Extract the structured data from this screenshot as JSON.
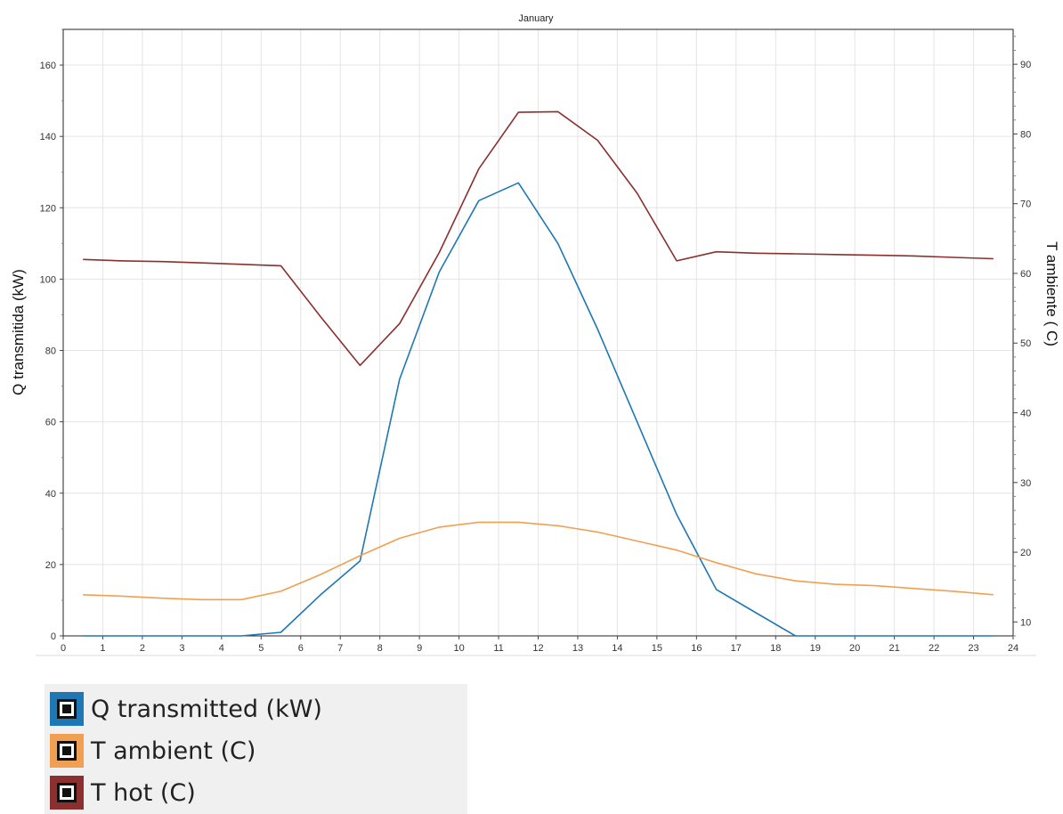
{
  "chart_data": {
    "type": "line",
    "title": "January",
    "xlabel": "",
    "ylabel": "Q transmitida (kW)",
    "y2label": "T ambiente ( C)",
    "xlim": [
      0,
      24
    ],
    "ylim": [
      0,
      170
    ],
    "y2lim": [
      8,
      95
    ],
    "x_ticks": [
      0,
      1,
      2,
      3,
      4,
      5,
      6,
      7,
      8,
      9,
      10,
      11,
      12,
      13,
      14,
      15,
      16,
      17,
      18,
      19,
      20,
      21,
      22,
      23,
      24
    ],
    "y_ticks": [
      0,
      20,
      40,
      60,
      80,
      100,
      120,
      140,
      160
    ],
    "y2_ticks": [
      10,
      20,
      30,
      40,
      50,
      60,
      70,
      80,
      90
    ],
    "grid": true,
    "x": [
      0.5,
      1.5,
      2.5,
      3.5,
      4.5,
      5.5,
      6.5,
      7.5,
      8.5,
      9.5,
      10.5,
      11.5,
      12.5,
      13.5,
      14.5,
      15.5,
      16.5,
      17.5,
      18.5,
      19.5,
      20.5,
      21.5,
      22.5,
      23.5
    ],
    "series": [
      {
        "name": "Q transmitted (kW)",
        "axis": "left",
        "color": "#1f77b4",
        "values": [
          0,
          0,
          0,
          0,
          0,
          1,
          11.5,
          21,
          72,
          102,
          122,
          127,
          110,
          86,
          60,
          34,
          13,
          6.5,
          0,
          0,
          0,
          0,
          0,
          0
        ]
      },
      {
        "name": "T ambient (C)",
        "axis": "right",
        "color": "#f0a050",
        "values": [
          13.9,
          13.7,
          13.4,
          13.2,
          13.2,
          14.4,
          16.8,
          19.5,
          22,
          23.6,
          24.3,
          24.3,
          23.8,
          22.9,
          21.6,
          20.3,
          18.5,
          16.9,
          15.9,
          15.4,
          15.2,
          14.8,
          14.4,
          13.9
        ]
      },
      {
        "name": "T hot (C)",
        "axis": "right",
        "color": "#8b2f2f",
        "values": [
          62,
          61.8,
          61.7,
          61.5,
          61.3,
          61.1,
          53.8,
          46.8,
          52.8,
          63,
          75,
          83.1,
          83.2,
          79.1,
          71.5,
          61.8,
          63.1,
          62.9,
          62.8,
          62.7,
          62.6,
          62.5,
          62.3,
          62.1
        ]
      }
    ],
    "legend_position": "bottom-left"
  }
}
